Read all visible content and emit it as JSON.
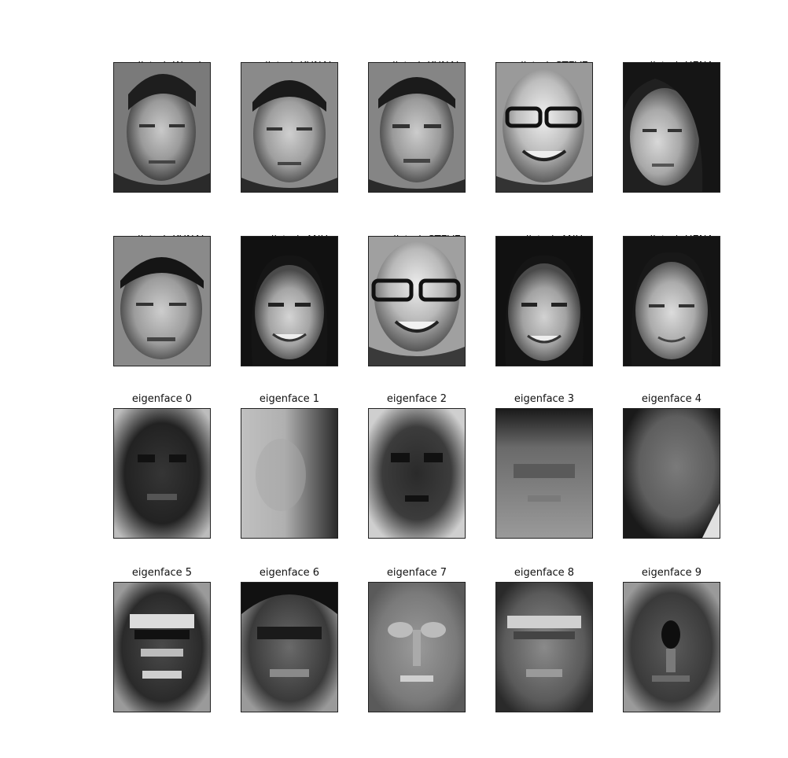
{
  "figure": {
    "prediction_panels": [
      {
        "predicted_line": "predicted: Woods",
        "true_line": "true:      KUNAL",
        "image_kind": "face-photo"
      },
      {
        "predicted_line": "predicted: KUNAL",
        "true_line": "true:      KUNAL",
        "image_kind": "face-photo"
      },
      {
        "predicted_line": "predicted: KUNAL",
        "true_line": "true:      KUNAL",
        "image_kind": "face-photo"
      },
      {
        "predicted_line": "predicted: STEVE",
        "true_line": "true:      STEVE",
        "image_kind": "face-photo"
      },
      {
        "predicted_line": "predicted: HENA",
        "true_line": "true:      HENA",
        "image_kind": "face-photo"
      },
      {
        "predicted_line": "predicted: KUNAL",
        "true_line": "true:      KUNAL",
        "image_kind": "face-photo"
      },
      {
        "predicted_line": "predicted: ANU",
        "true_line": "true:      ANU",
        "image_kind": "face-photo"
      },
      {
        "predicted_line": "predicted: STEVE",
        "true_line": "true:      STEVE",
        "image_kind": "face-photo"
      },
      {
        "predicted_line": "predicted: ANU",
        "true_line": "true:      ANU",
        "image_kind": "face-photo"
      },
      {
        "predicted_line": "predicted: HENA",
        "true_line": "true:      HENA",
        "image_kind": "face-photo"
      }
    ],
    "eigenface_panels": [
      {
        "label": "eigenface 0",
        "image_kind": "eigenface"
      },
      {
        "label": "eigenface 1",
        "image_kind": "eigenface"
      },
      {
        "label": "eigenface 2",
        "image_kind": "eigenface"
      },
      {
        "label": "eigenface 3",
        "image_kind": "eigenface"
      },
      {
        "label": "eigenface 4",
        "image_kind": "eigenface"
      },
      {
        "label": "eigenface 5",
        "image_kind": "eigenface"
      },
      {
        "label": "eigenface 6",
        "image_kind": "eigenface"
      },
      {
        "label": "eigenface 7",
        "image_kind": "eigenface"
      },
      {
        "label": "eigenface 8",
        "image_kind": "eigenface"
      },
      {
        "label": "eigenface 9",
        "image_kind": "eigenface"
      }
    ],
    "colors": {
      "background": "#ffffff",
      "frame_border": "#222222",
      "text": "#111111"
    }
  }
}
